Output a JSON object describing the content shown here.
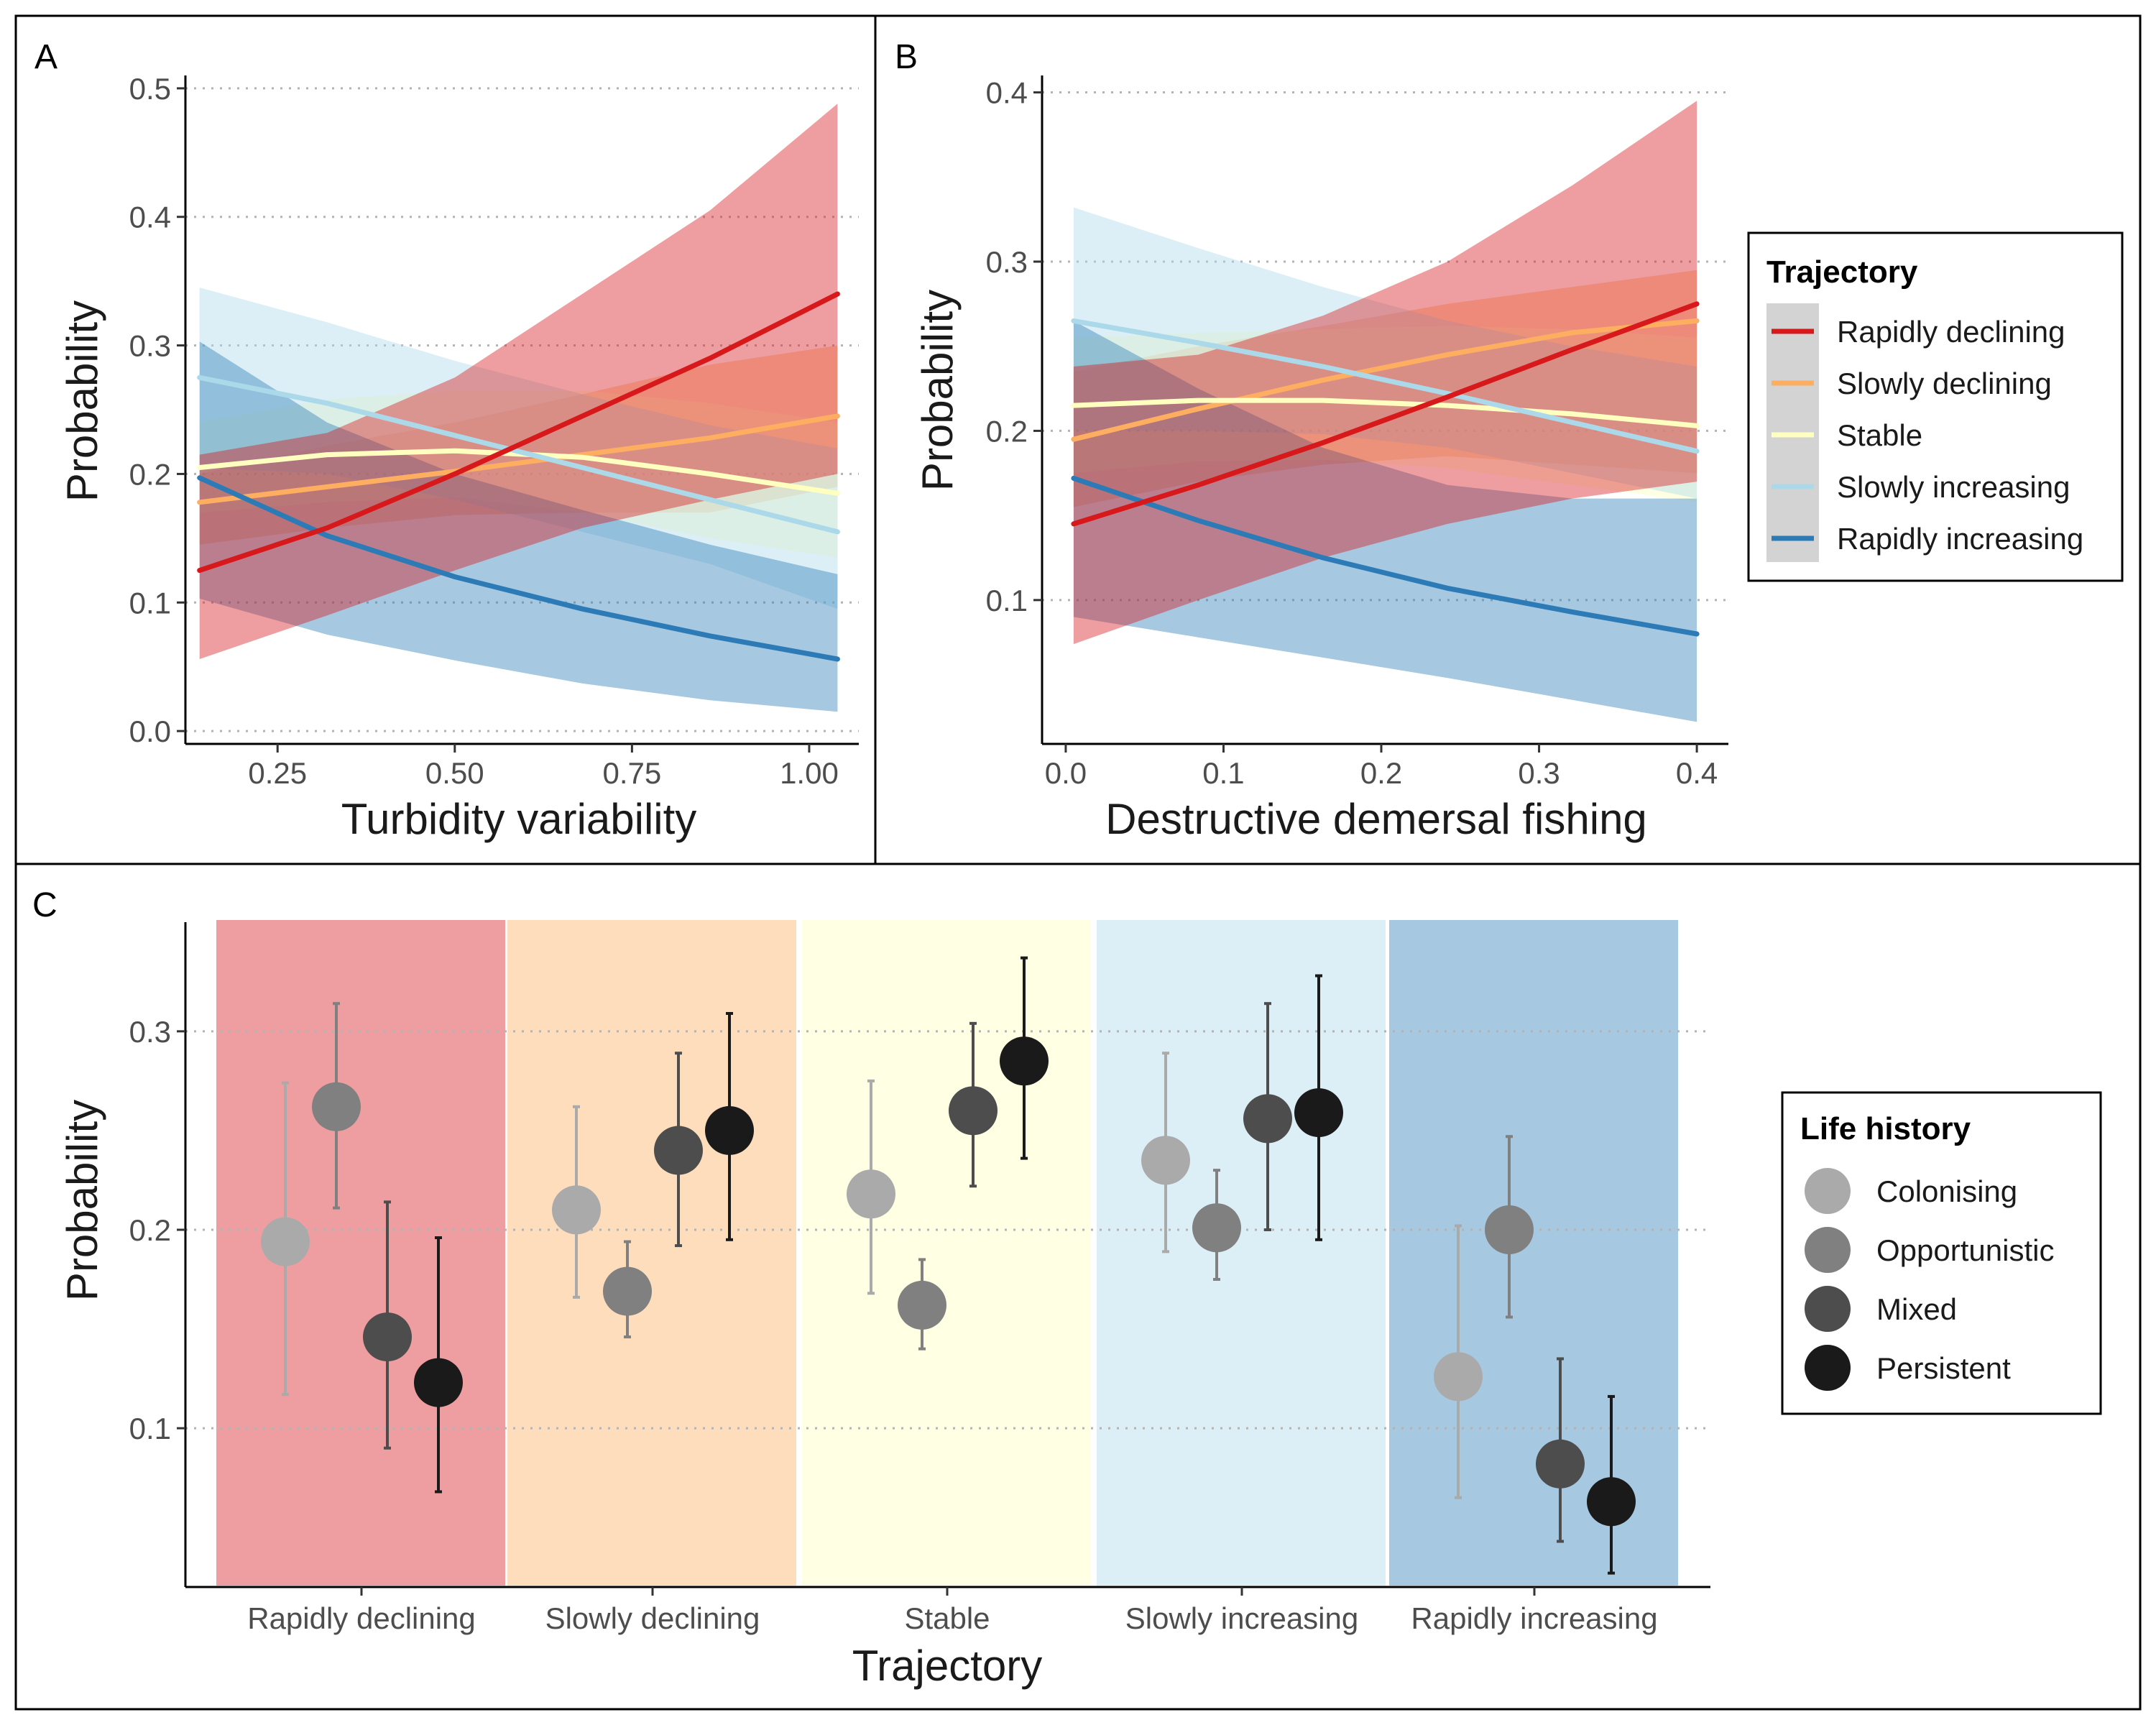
{
  "colors": {
    "rapidly_declining": "#D7191C",
    "slowly_declining": "#FDAE61",
    "stable": "#FFFFBF",
    "slowly_increasing": "#ABD9E9",
    "rapidly_increasing": "#2C7BB6",
    "colonising": "#AAAAAA",
    "opportunistic": "#808080",
    "mixed": "#4D4D4D",
    "persistent": "#1A1A1A"
  },
  "panels": {
    "a_label": "A",
    "b_label": "B",
    "c_label": "C"
  },
  "legend_trajectory": {
    "title": "Trajectory",
    "items": [
      {
        "label": "Rapidly declining",
        "color": "#D7191C"
      },
      {
        "label": "Slowly declining",
        "color": "#FDAE61"
      },
      {
        "label": "Stable",
        "color": "#FFFFBF"
      },
      {
        "label": "Slowly increasing",
        "color": "#ABD9E9"
      },
      {
        "label": "Rapidly increasing",
        "color": "#2C7BB6"
      }
    ]
  },
  "legend_life_history": {
    "title": "Life history",
    "items": [
      {
        "label": "Colonising",
        "color": "#AAAAAA"
      },
      {
        "label": "Opportunistic",
        "color": "#808080"
      },
      {
        "label": "Mixed",
        "color": "#4D4D4D"
      },
      {
        "label": "Persistent",
        "color": "#1A1A1A"
      }
    ]
  },
  "chart_data": [
    {
      "id": "A",
      "type": "line",
      "title": "",
      "xlabel": "Turbidity variability",
      "ylabel": "Probability",
      "xlim": [
        0.12,
        1.07
      ],
      "ylim": [
        -0.01,
        0.51
      ],
      "xticks": [
        0.25,
        0.5,
        0.75,
        1.0
      ],
      "xtick_labels": [
        "0.25",
        "0.50",
        "0.75",
        "1.00"
      ],
      "yticks": [
        0.0,
        0.1,
        0.2,
        0.3,
        0.4,
        0.5
      ],
      "ytick_labels": [
        "0.0",
        "0.1",
        "0.2",
        "0.3",
        "0.4",
        "0.5"
      ],
      "grid": "horizontal dotted",
      "x": [
        0.14,
        0.32,
        0.5,
        0.68,
        0.86,
        1.04
      ],
      "series": [
        {
          "name": "Slowly declining",
          "values": [
            0.178,
            0.19,
            0.202,
            0.215,
            0.228,
            0.245
          ],
          "lower": [
            0.145,
            0.158,
            0.168,
            0.17,
            0.17,
            0.19
          ],
          "upper": [
            0.2,
            0.222,
            0.24,
            0.262,
            0.285,
            0.3
          ]
        },
        {
          "name": "Stable",
          "values": [
            0.205,
            0.215,
            0.218,
            0.213,
            0.2,
            0.185
          ],
          "lower": [
            0.17,
            0.178,
            0.182,
            0.17,
            0.15,
            0.135
          ],
          "upper": [
            0.24,
            0.258,
            0.265,
            0.265,
            0.255,
            0.24
          ]
        },
        {
          "name": "Slowly increasing",
          "values": [
            0.275,
            0.255,
            0.23,
            0.205,
            0.18,
            0.155
          ],
          "lower": [
            0.205,
            0.2,
            0.18,
            0.155,
            0.13,
            0.095
          ],
          "upper": [
            0.345,
            0.318,
            0.288,
            0.262,
            0.238,
            0.22
          ]
        },
        {
          "name": "Rapidly increasing",
          "values": [
            0.197,
            0.152,
            0.12,
            0.095,
            0.074,
            0.056
          ],
          "lower": [
            0.103,
            0.075,
            0.055,
            0.037,
            0.024,
            0.015
          ],
          "upper": [
            0.303,
            0.24,
            0.2,
            0.172,
            0.145,
            0.122
          ]
        },
        {
          "name": "Rapidly declining",
          "values": [
            0.125,
            0.158,
            0.2,
            0.245,
            0.29,
            0.34
          ],
          "lower": [
            0.056,
            0.09,
            0.125,
            0.158,
            0.18,
            0.2
          ],
          "upper": [
            0.215,
            0.232,
            0.275,
            0.34,
            0.405,
            0.488
          ]
        }
      ]
    },
    {
      "id": "B",
      "type": "line",
      "title": "",
      "xlabel": "Destructive demersal fishing",
      "ylabel": "Probability",
      "xlim": [
        -0.015,
        0.42
      ],
      "ylim": [
        0.015,
        0.41
      ],
      "xticks": [
        0.0,
        0.1,
        0.2,
        0.3,
        0.4
      ],
      "xtick_labels": [
        "0.0",
        "0.1",
        "0.2",
        "0.3",
        "0.4"
      ],
      "yticks": [
        0.1,
        0.2,
        0.3,
        0.4
      ],
      "ytick_labels": [
        "0.1",
        "0.2",
        "0.3",
        "0.4"
      ],
      "grid": "horizontal dotted",
      "x": [
        0.005,
        0.084,
        0.163,
        0.242,
        0.321,
        0.4
      ],
      "series": [
        {
          "name": "Slowly declining",
          "values": [
            0.195,
            0.213,
            0.23,
            0.245,
            0.258,
            0.265
          ],
          "lower": [
            0.155,
            0.17,
            0.18,
            0.185,
            0.18,
            0.175
          ],
          "upper": [
            0.235,
            0.25,
            0.262,
            0.275,
            0.285,
            0.295
          ]
        },
        {
          "name": "Stable",
          "values": [
            0.215,
            0.218,
            0.218,
            0.215,
            0.21,
            0.203
          ],
          "lower": [
            0.175,
            0.182,
            0.183,
            0.178,
            0.168,
            0.158
          ],
          "upper": [
            0.255,
            0.258,
            0.26,
            0.262,
            0.26,
            0.255
          ]
        },
        {
          "name": "Slowly increasing",
          "values": [
            0.265,
            0.252,
            0.238,
            0.222,
            0.205,
            0.188
          ],
          "lower": [
            0.2,
            0.2,
            0.198,
            0.19,
            0.175,
            0.16
          ],
          "upper": [
            0.332,
            0.308,
            0.285,
            0.265,
            0.25,
            0.238
          ]
        },
        {
          "name": "Rapidly increasing",
          "values": [
            0.172,
            0.147,
            0.125,
            0.107,
            0.093,
            0.08
          ],
          "lower": [
            0.09,
            0.078,
            0.066,
            0.054,
            0.041,
            0.028
          ],
          "upper": [
            0.265,
            0.225,
            0.19,
            0.168,
            0.16,
            0.16
          ]
        },
        {
          "name": "Rapidly declining",
          "values": [
            0.145,
            0.168,
            0.193,
            0.22,
            0.248,
            0.275
          ],
          "lower": [
            0.074,
            0.1,
            0.125,
            0.145,
            0.16,
            0.17
          ],
          "upper": [
            0.238,
            0.245,
            0.268,
            0.3,
            0.345,
            0.395
          ]
        }
      ]
    },
    {
      "id": "C",
      "type": "scatter",
      "title": "",
      "xlabel": "Trajectory",
      "ylabel": "Probability",
      "ylim": [
        0.02,
        0.355
      ],
      "yticks": [
        0.1,
        0.2,
        0.3
      ],
      "ytick_labels": [
        "0.1",
        "0.2",
        "0.3"
      ],
      "grid": "horizontal dotted",
      "categories": [
        "Rapidly declining",
        "Slowly declining",
        "Stable",
        "Slowly increasing",
        "Rapidly increasing"
      ],
      "series": [
        {
          "name": "Colonising",
          "values": [
            0.194,
            0.21,
            0.218,
            0.235,
            0.126
          ],
          "lower": [
            0.117,
            0.166,
            0.168,
            0.189,
            0.065
          ],
          "upper": [
            0.274,
            0.262,
            0.275,
            0.289,
            0.202
          ]
        },
        {
          "name": "Opportunistic",
          "values": [
            0.262,
            0.169,
            0.162,
            0.201,
            0.2
          ],
          "lower": [
            0.211,
            0.146,
            0.14,
            0.175,
            0.156
          ],
          "upper": [
            0.314,
            0.194,
            0.185,
            0.23,
            0.247
          ]
        },
        {
          "name": "Mixed",
          "values": [
            0.146,
            0.24,
            0.26,
            0.256,
            0.082
          ],
          "lower": [
            0.09,
            0.192,
            0.222,
            0.2,
            0.043
          ],
          "upper": [
            0.214,
            0.289,
            0.304,
            0.314,
            0.135
          ]
        },
        {
          "name": "Persistent",
          "values": [
            0.123,
            0.25,
            0.285,
            0.259,
            0.063
          ],
          "lower": [
            0.068,
            0.195,
            0.236,
            0.195,
            0.027
          ],
          "upper": [
            0.196,
            0.309,
            0.337,
            0.328,
            0.116
          ]
        }
      ]
    }
  ]
}
